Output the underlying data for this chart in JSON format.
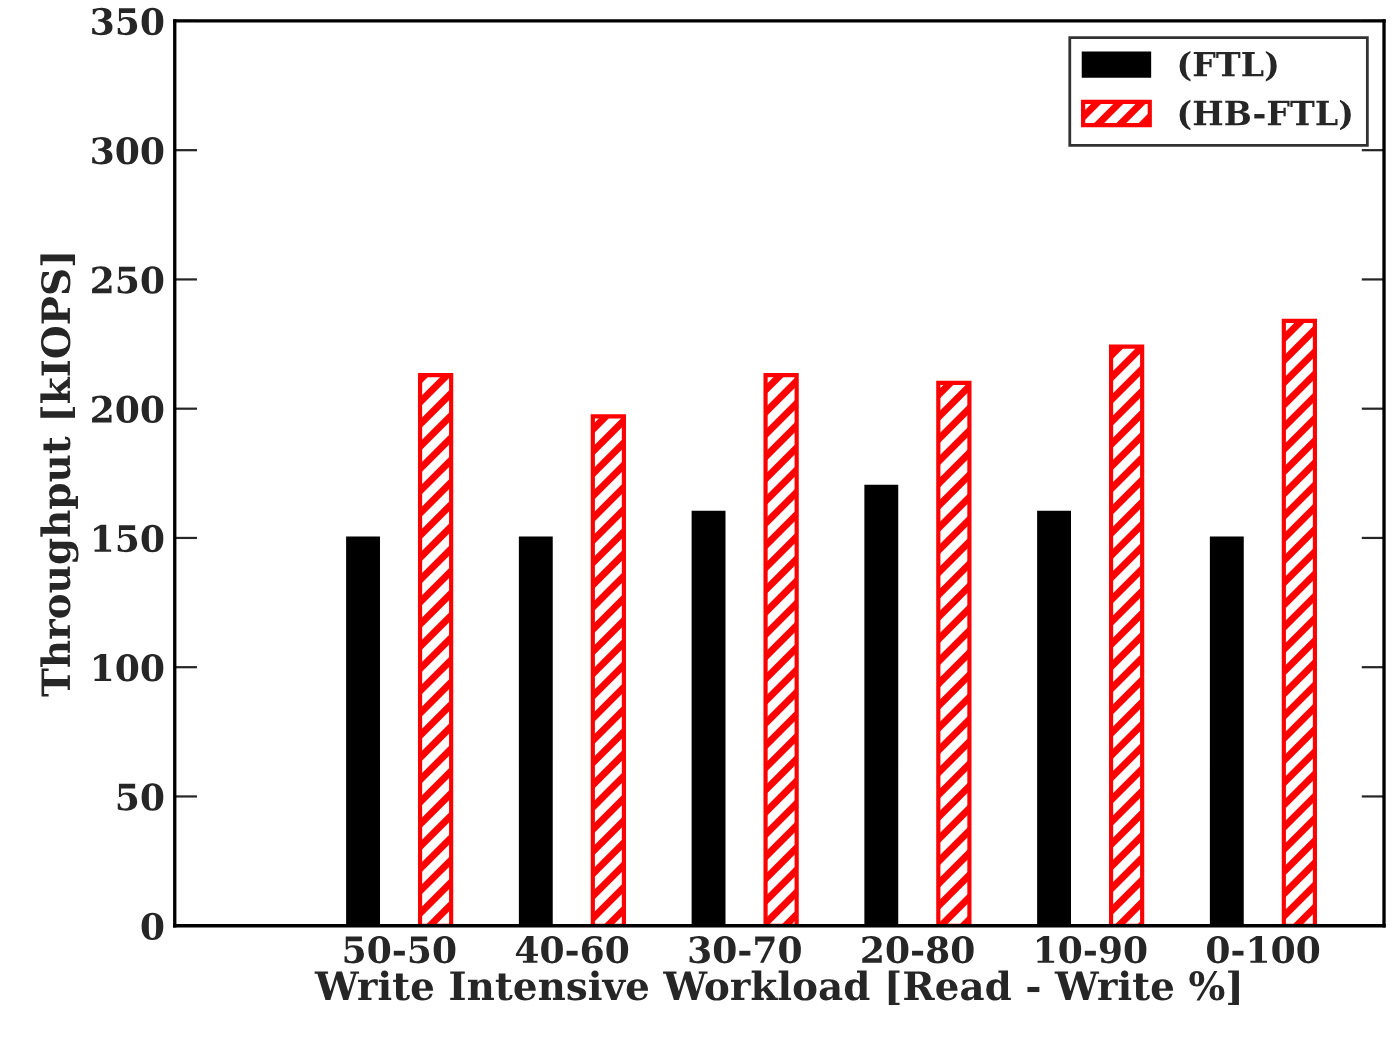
{
  "chart_data": {
    "type": "bar",
    "xlabel": "Write Intensive Workload [Read - Write %]",
    "ylabel": "Throughput [kIOPS]",
    "categories": [
      "50-50",
      "40-60",
      "30-70",
      "20-80",
      "10-90",
      "0-100"
    ],
    "series": [
      {
        "name": "(FTL)",
        "color": "#000000",
        "values": [
          150,
          150,
          160,
          170,
          160,
          150
        ]
      },
      {
        "name": "(HB-FTL)",
        "color": "#ff0000",
        "values": [
          213,
          197,
          213,
          210,
          224,
          234
        ]
      }
    ],
    "ylim": [
      0,
      350
    ],
    "yticks": [
      0,
      50,
      100,
      150,
      200,
      250,
      300,
      350
    ],
    "grid": false,
    "legend": "top right"
  }
}
